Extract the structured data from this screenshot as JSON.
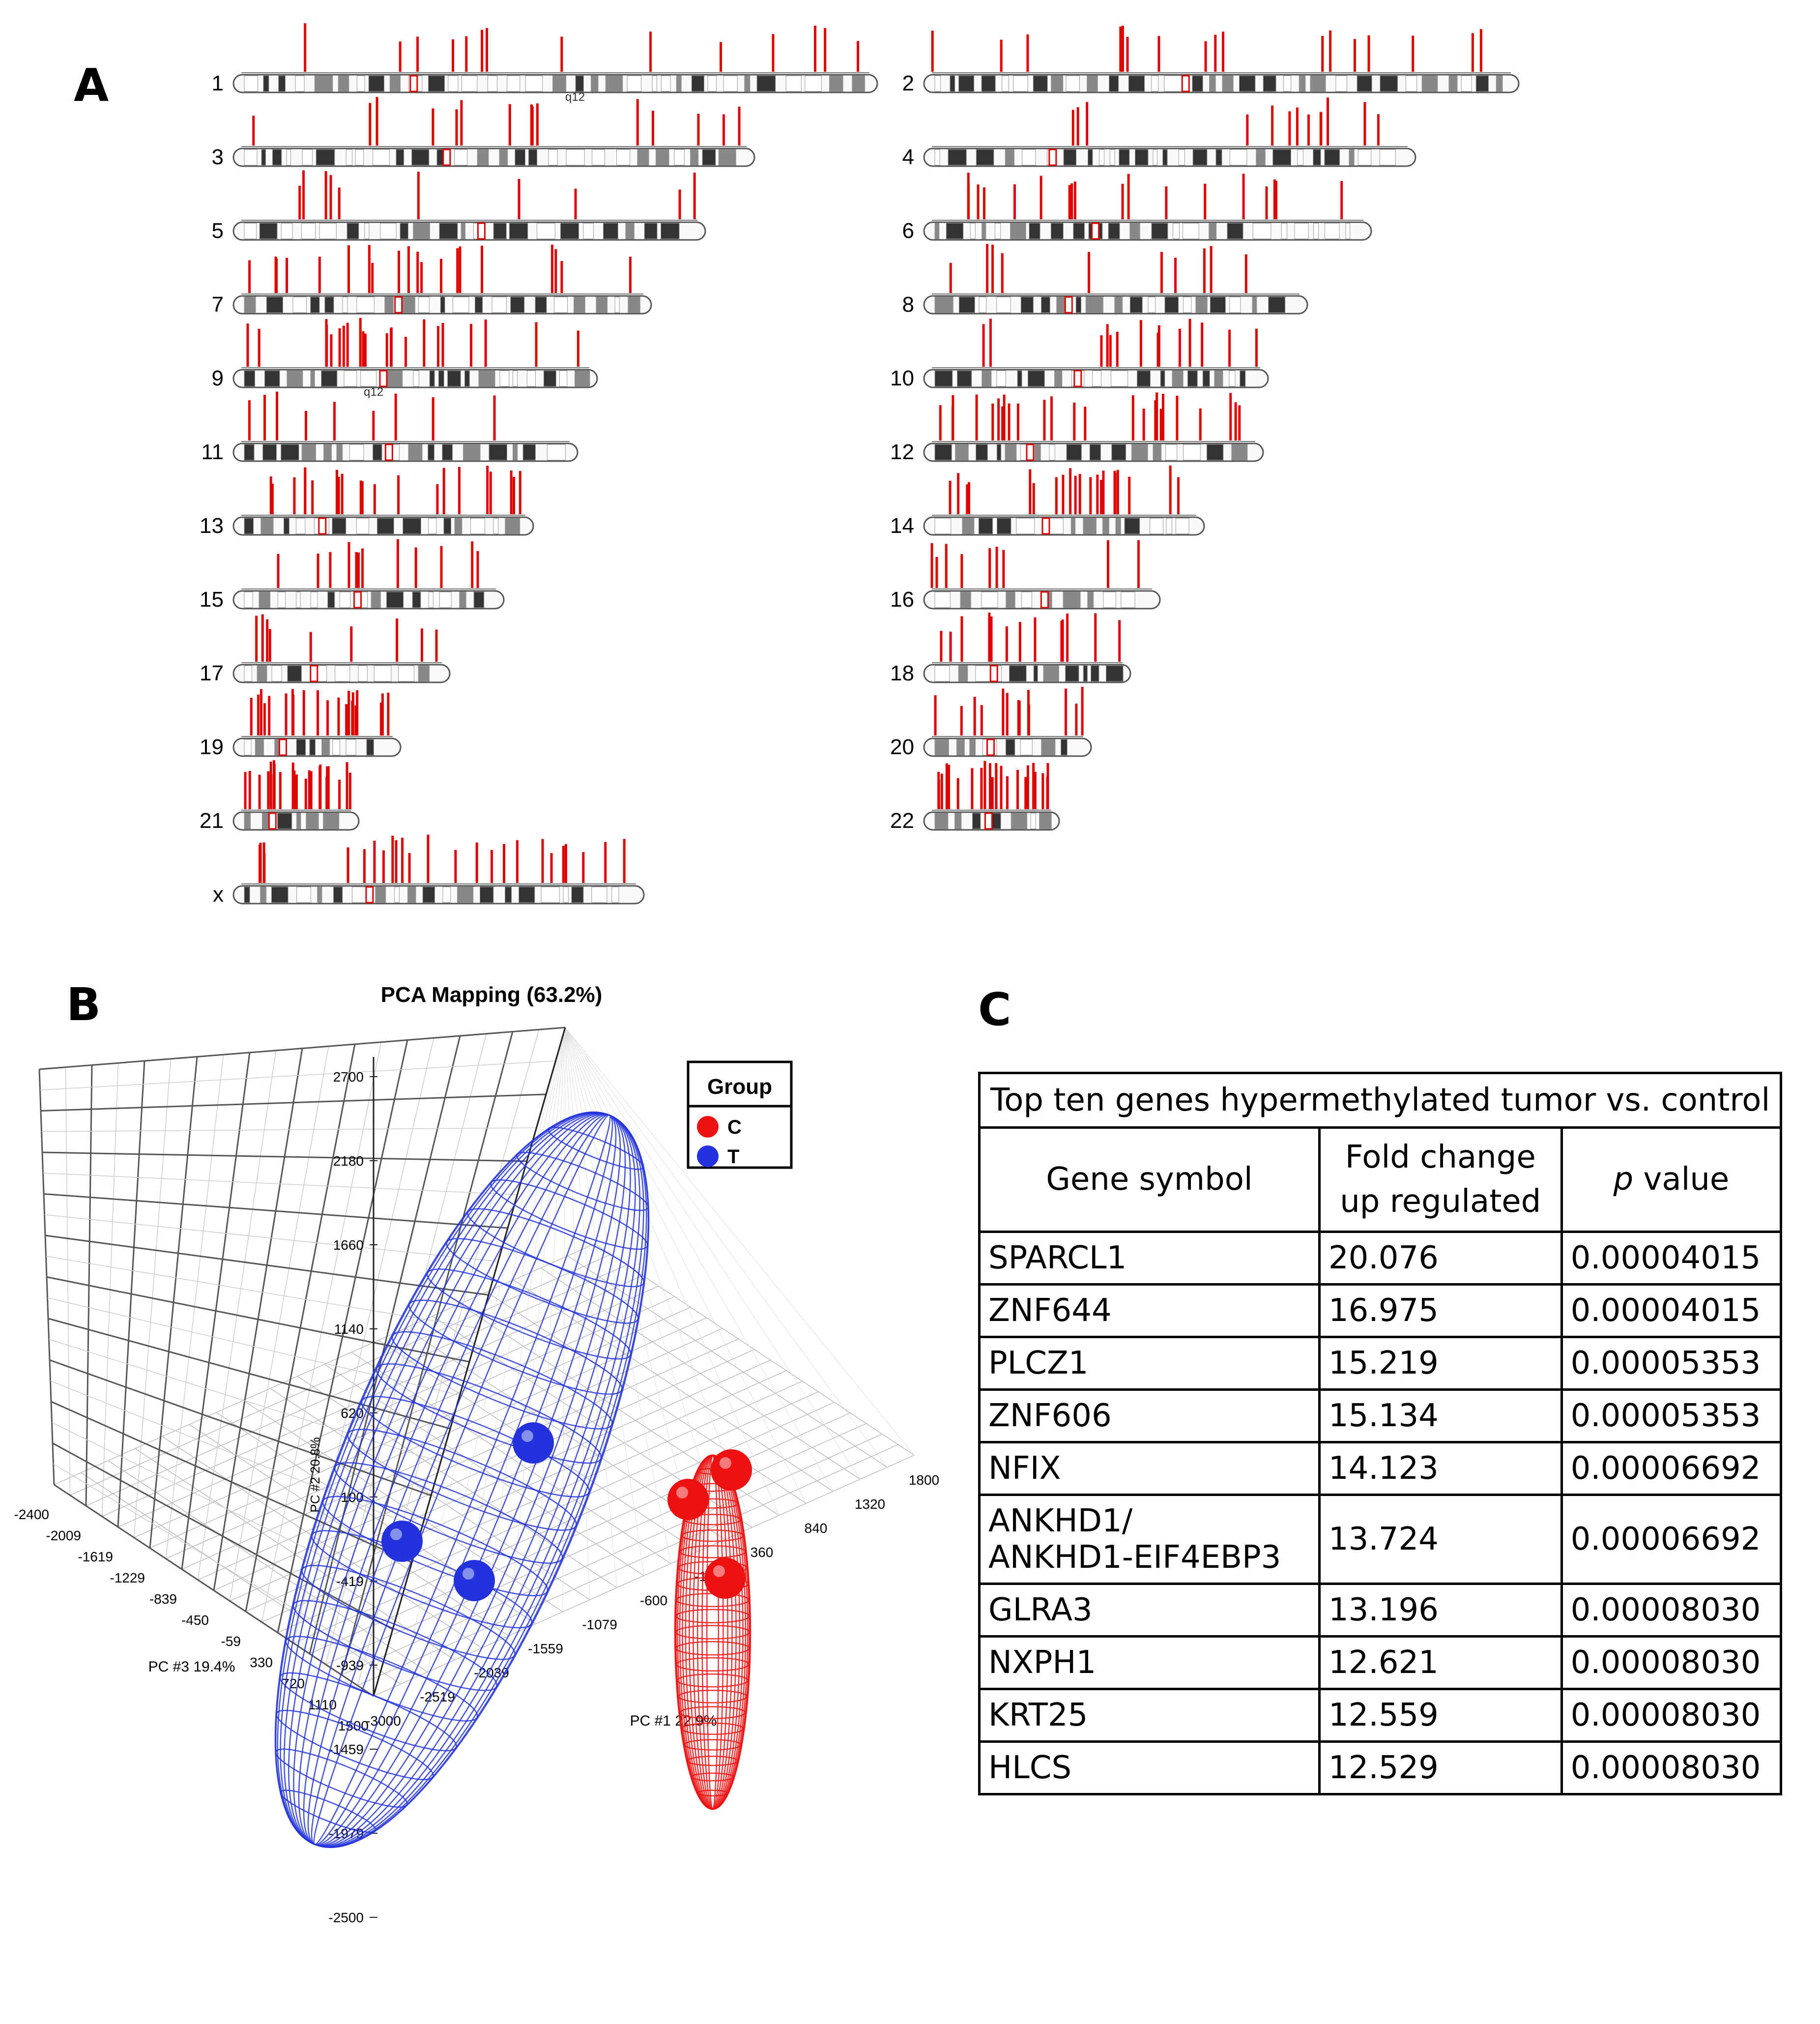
{
  "panel_labels": {
    "a": "A",
    "b": "B",
    "c": "C"
  },
  "panel_a": {
    "chromosomes": [
      "1",
      "2",
      "3",
      "4",
      "5",
      "6",
      "7",
      "8",
      "9",
      "10",
      "11",
      "12",
      "13",
      "14",
      "15",
      "16",
      "17",
      "18",
      "19",
      "20",
      "21",
      "22",
      "x"
    ],
    "band_labels": [
      "q12",
      "q12"
    ],
    "colors": {
      "hit": "#e00000",
      "band_dark": "#333333",
      "band_mid": "#888888",
      "outline": "#555555"
    }
  },
  "chart_data": {
    "type": "scatter",
    "title": "PCA Mapping (63.2%)",
    "legend": {
      "title": "Group",
      "placement": "top-right",
      "entries": [
        {
          "name": "C",
          "color": "#ee1111"
        },
        {
          "name": "T",
          "color": "#2233dd"
        }
      ]
    },
    "axes": {
      "x": {
        "label": "PC #1 22.9%",
        "ticks": [
          "-3000",
          "-2519",
          "-2039",
          "-1559",
          "-1079",
          "-600",
          "-119",
          "360",
          "840",
          "1320",
          "1800"
        ]
      },
      "z": {
        "label": "PC #3 19.4%",
        "ticks": [
          "-2400",
          "-2009",
          "-1619",
          "-1229",
          "-839",
          "-450",
          "-59",
          "330",
          "720",
          "1110",
          "1500"
        ]
      },
      "y": {
        "label": "PC #2 20.8%",
        "ticks": [
          "2700",
          "2180",
          "1660",
          "1140",
          "620",
          "100",
          "-419",
          "-939",
          "-1459",
          "-1979",
          "-2500"
        ]
      }
    },
    "series": [
      {
        "name": "T",
        "points": [
          [
            -1400,
            500,
            200
          ],
          [
            -1150,
            -400,
            300
          ],
          [
            -700,
            1900,
            100
          ]
        ]
      },
      {
        "name": "C",
        "points": [
          [
            700,
            900,
            -300
          ],
          [
            900,
            1400,
            -400
          ],
          [
            900,
            -500,
            -350
          ]
        ]
      }
    ]
  },
  "table": {
    "title": "Top ten genes hypermethylated tumor vs. control",
    "headers": {
      "gene": "Gene symbol",
      "fold_1": "Fold change",
      "fold_2": "up regulated",
      "p_italic": "p",
      "p_rest": " value"
    },
    "rows": [
      {
        "gene": "SPARCL1",
        "fold": "20.076",
        "p": "0.00004015"
      },
      {
        "gene": "ZNF644",
        "fold": "16.975",
        "p": "0.00004015"
      },
      {
        "gene": "PLCZ1",
        "fold": "15.219",
        "p": "0.00005353"
      },
      {
        "gene": "ZNF606",
        "fold": "15.134",
        "p": "0.00005353"
      },
      {
        "gene": "NFIX",
        "fold": "14.123",
        "p": "0.00006692"
      },
      {
        "gene": "ANKHD1/",
        "gene2": "ANKHD1-EIF4EBP3",
        "fold": "13.724",
        "p": "0.00006692"
      },
      {
        "gene": "GLRA3",
        "fold": "13.196",
        "p": "0.00008030"
      },
      {
        "gene": "NXPH1",
        "fold": "12.621",
        "p": "0.00008030"
      },
      {
        "gene": "KRT25",
        "fold": "12.559",
        "p": "0.00008030"
      },
      {
        "gene": "HLCS",
        "fold": "12.529",
        "p": "0.00008030"
      }
    ]
  }
}
